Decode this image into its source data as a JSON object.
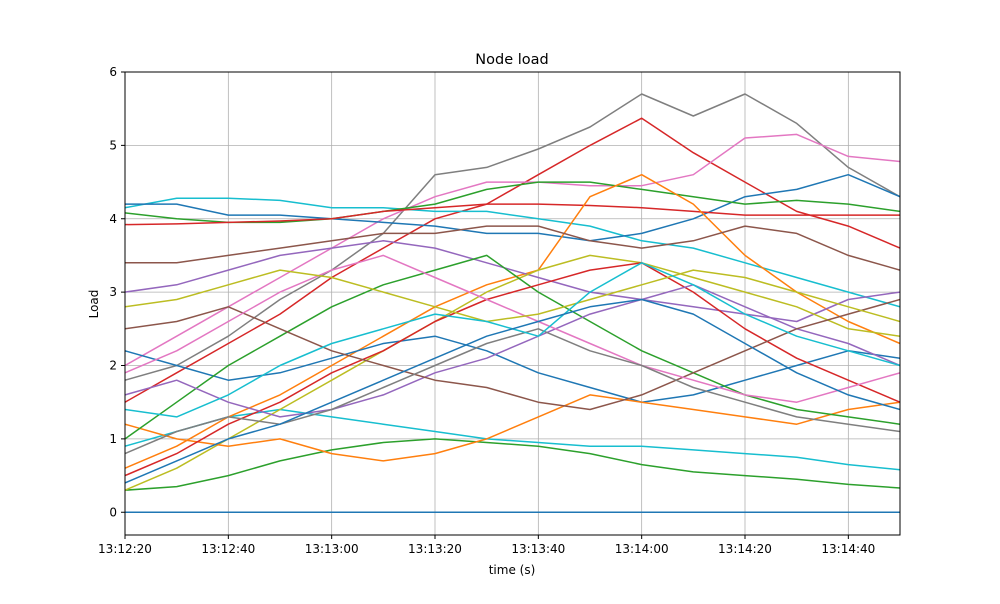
{
  "chart_data": {
    "type": "line",
    "title": "Node load",
    "xlabel": "time (s)",
    "ylabel": "Load",
    "xlim": [
      "13:12:20",
      "13:14:50"
    ],
    "ylim": [
      -0.31,
      6
    ],
    "grid": true,
    "x_ticks": [
      "13:12:20",
      "13:12:40",
      "13:13:00",
      "13:13:20",
      "13:13:40",
      "13:14:00",
      "13:14:20",
      "13:14:40"
    ],
    "y_ticks": [
      "0",
      "1",
      "2",
      "3",
      "4",
      "5",
      "6"
    ],
    "x": [
      "13:12:20",
      "13:12:30",
      "13:12:40",
      "13:12:50",
      "13:13:00",
      "13:13:10",
      "13:13:20",
      "13:13:30",
      "13:13:40",
      "13:13:50",
      "13:14:00",
      "13:14:10",
      "13:14:20",
      "13:14:30",
      "13:14:40",
      "13:14:50"
    ],
    "series": [
      {
        "color": "#1f77b4",
        "values": [
          0,
          0,
          0,
          0,
          0,
          0,
          0,
          0,
          0,
          0,
          0,
          0,
          0,
          0,
          0,
          0
        ]
      },
      {
        "color": "#7f7f7f",
        "values": [
          1.8,
          2.0,
          2.4,
          2.9,
          3.3,
          3.8,
          4.6,
          4.7,
          4.95,
          5.25,
          5.7,
          5.4,
          5.7,
          5.3,
          4.7,
          4.3
        ]
      },
      {
        "color": "#d62728",
        "values": [
          1.5,
          1.9,
          2.3,
          2.7,
          3.2,
          3.6,
          4.0,
          4.2,
          4.6,
          5.0,
          5.37,
          4.9,
          4.5,
          4.1,
          3.9,
          3.6
        ]
      },
      {
        "color": "#e377c2",
        "values": [
          2.0,
          2.4,
          2.8,
          3.2,
          3.6,
          4.0,
          4.3,
          4.5,
          4.5,
          4.45,
          4.45,
          4.6,
          5.1,
          5.15,
          4.85,
          4.78
        ]
      },
      {
        "color": "#17becf",
        "values": [
          4.15,
          4.28,
          4.28,
          4.25,
          4.15,
          4.15,
          4.1,
          4.1,
          4.0,
          3.9,
          3.7,
          3.6,
          3.4,
          3.2,
          3.0,
          2.8
        ]
      },
      {
        "color": "#1f77b4",
        "values": [
          4.2,
          4.2,
          4.05,
          4.05,
          4.0,
          3.95,
          3.9,
          3.8,
          3.8,
          3.7,
          3.8,
          4.0,
          4.3,
          4.4,
          4.6,
          4.3
        ]
      },
      {
        "color": "#2ca02c",
        "values": [
          4.08,
          4.0,
          3.95,
          3.95,
          4.0,
          4.1,
          4.2,
          4.4,
          4.5,
          4.5,
          4.4,
          4.3,
          4.2,
          4.25,
          4.2,
          4.1
        ]
      },
      {
        "color": "#d62728",
        "values": [
          3.92,
          3.93,
          3.95,
          3.97,
          4.0,
          4.1,
          4.15,
          4.2,
          4.2,
          4.18,
          4.15,
          4.1,
          4.05,
          4.05,
          4.05,
          4.05
        ]
      },
      {
        "color": "#2ca02c",
        "values": [
          0.3,
          0.35,
          0.5,
          0.7,
          0.85,
          0.95,
          1.0,
          0.95,
          0.9,
          0.8,
          0.65,
          0.55,
          0.5,
          0.45,
          0.38,
          0.33
        ]
      },
      {
        "color": "#17becf",
        "values": [
          0.9,
          1.1,
          1.3,
          1.4,
          1.3,
          1.2,
          1.1,
          1.0,
          0.95,
          0.9,
          0.9,
          0.85,
          0.8,
          0.75,
          0.65,
          0.58
        ]
      },
      {
        "color": "#ff7f0e",
        "values": [
          0.6,
          0.9,
          1.3,
          1.6,
          2.0,
          2.4,
          2.8,
          3.1,
          3.3,
          4.3,
          4.6,
          4.2,
          3.5,
          3.0,
          2.6,
          2.3
        ]
      },
      {
        "color": "#9467bd",
        "values": [
          3.0,
          3.1,
          3.3,
          3.5,
          3.6,
          3.7,
          3.6,
          3.4,
          3.2,
          3.0,
          2.9,
          2.8,
          2.7,
          2.6,
          2.9,
          3.0
        ]
      },
      {
        "color": "#8c564b",
        "values": [
          3.4,
          3.4,
          3.5,
          3.6,
          3.7,
          3.8,
          3.8,
          3.9,
          3.9,
          3.7,
          3.6,
          3.7,
          3.9,
          3.8,
          3.5,
          3.3
        ]
      },
      {
        "color": "#bcbd22",
        "values": [
          0.3,
          0.6,
          1.0,
          1.4,
          1.8,
          2.2,
          2.6,
          3.0,
          3.3,
          3.5,
          3.4,
          3.2,
          3.0,
          2.8,
          2.5,
          2.4
        ]
      },
      {
        "color": "#1f77b4",
        "values": [
          2.2,
          2.0,
          1.8,
          1.9,
          2.1,
          2.3,
          2.4,
          2.2,
          1.9,
          1.7,
          1.5,
          1.6,
          1.8,
          2.0,
          2.2,
          2.1
        ]
      },
      {
        "color": "#ff7f0e",
        "values": [
          1.2,
          1.0,
          0.9,
          1.0,
          0.8,
          0.7,
          0.8,
          1.0,
          1.3,
          1.6,
          1.5,
          1.4,
          1.3,
          1.2,
          1.4,
          1.5
        ]
      },
      {
        "color": "#2ca02c",
        "values": [
          1.0,
          1.5,
          2.0,
          2.4,
          2.8,
          3.1,
          3.3,
          3.5,
          3.0,
          2.6,
          2.2,
          1.9,
          1.6,
          1.4,
          1.3,
          1.2
        ]
      },
      {
        "color": "#d62728",
        "values": [
          0.5,
          0.8,
          1.2,
          1.5,
          1.9,
          2.2,
          2.6,
          2.9,
          3.1,
          3.3,
          3.4,
          3.0,
          2.5,
          2.1,
          1.8,
          1.5
        ]
      },
      {
        "color": "#9467bd",
        "values": [
          1.6,
          1.8,
          1.5,
          1.3,
          1.4,
          1.6,
          1.9,
          2.1,
          2.4,
          2.7,
          2.9,
          3.1,
          2.8,
          2.5,
          2.3,
          2.0
        ]
      },
      {
        "color": "#8c564b",
        "values": [
          2.5,
          2.6,
          2.8,
          2.5,
          2.2,
          2.0,
          1.8,
          1.7,
          1.5,
          1.4,
          1.6,
          1.9,
          2.2,
          2.5,
          2.7,
          2.9
        ]
      },
      {
        "color": "#e377c2",
        "values": [
          1.9,
          2.2,
          2.6,
          3.0,
          3.3,
          3.5,
          3.2,
          2.9,
          2.6,
          2.3,
          2.0,
          1.8,
          1.6,
          1.5,
          1.7,
          1.9
        ]
      },
      {
        "color": "#7f7f7f",
        "values": [
          0.8,
          1.1,
          1.3,
          1.2,
          1.4,
          1.7,
          2.0,
          2.3,
          2.5,
          2.2,
          2.0,
          1.7,
          1.5,
          1.3,
          1.2,
          1.1
        ]
      },
      {
        "color": "#bcbd22",
        "values": [
          2.8,
          2.9,
          3.1,
          3.3,
          3.2,
          3.0,
          2.8,
          2.6,
          2.7,
          2.9,
          3.1,
          3.3,
          3.2,
          3.0,
          2.8,
          2.6
        ]
      },
      {
        "color": "#17becf",
        "values": [
          1.4,
          1.3,
          1.6,
          2.0,
          2.3,
          2.5,
          2.7,
          2.6,
          2.4,
          3.0,
          3.4,
          3.1,
          2.7,
          2.4,
          2.2,
          2.0
        ]
      },
      {
        "color": "#1f77b4",
        "values": [
          0.4,
          0.7,
          1.0,
          1.2,
          1.5,
          1.8,
          2.1,
          2.4,
          2.6,
          2.8,
          2.9,
          2.7,
          2.3,
          1.9,
          1.6,
          1.4
        ]
      }
    ]
  }
}
